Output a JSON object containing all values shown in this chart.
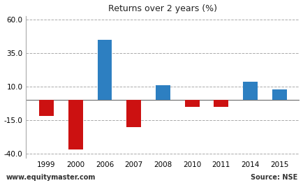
{
  "title": "Returns over 2 years (%)",
  "categories": [
    "1999",
    "2000",
    "2006",
    "2007",
    "2008",
    "2010",
    "2011",
    "2014",
    "2015"
  ],
  "values": [
    -12,
    -37,
    45,
    -20,
    11,
    -5,
    -5,
    14,
    8
  ],
  "colors": [
    "#cc1111",
    "#cc1111",
    "#2d7fc1",
    "#cc1111",
    "#2d7fc1",
    "#cc1111",
    "#cc1111",
    "#2d7fc1",
    "#2d7fc1"
  ],
  "ylim": [
    -43.0,
    63.0
  ],
  "yticks": [
    -40.0,
    -15.0,
    10.0,
    35.0,
    60.0
  ],
  "watermark_left": "www.equitymaster.com",
  "watermark_right": "Source: NSE",
  "background_color": "#ffffff",
  "bar_width": 0.5,
  "title_fontsize": 9,
  "tick_fontsize": 7.5
}
